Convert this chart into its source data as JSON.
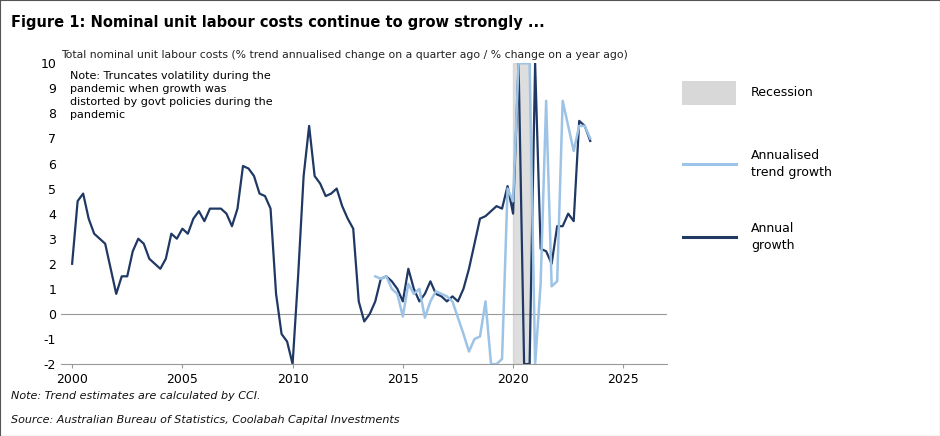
{
  "title": "Figure 1: Nominal unit labour costs continue to grow strongly ...",
  "subtitle": "Total nominal unit labour costs (% trend annualised change on a quarter ago / % change on a year ago)",
  "note": "Note: Trend estimates are calculated by CCI.",
  "source": "Source: Australian Bureau of Statistics, Coolabah Capital Investments",
  "chart_note": "Note: Truncates volatility during the\npandemic when growth was\ndistorted by govt policies during the\npandemic",
  "ylim": [
    -2,
    10
  ],
  "yticks": [
    -2,
    -1,
    0,
    1,
    2,
    3,
    4,
    5,
    6,
    7,
    8,
    9,
    10
  ],
  "xlim": [
    1999.5,
    2027
  ],
  "xticks": [
    2000,
    2005,
    2010,
    2015,
    2020,
    2025
  ],
  "recession_start": 2020.0,
  "recession_end": 2020.75,
  "color_annual": "#1F3864",
  "color_trend": "#9DC3E6",
  "color_recession": "#C8C8C8",
  "title_bg": "#D6E4F0",
  "annual_x": [
    2000.0,
    2000.25,
    2000.5,
    2000.75,
    2001.0,
    2001.25,
    2001.5,
    2001.75,
    2002.0,
    2002.25,
    2002.5,
    2002.75,
    2003.0,
    2003.25,
    2003.5,
    2003.75,
    2004.0,
    2004.25,
    2004.5,
    2004.75,
    2005.0,
    2005.25,
    2005.5,
    2005.75,
    2006.0,
    2006.25,
    2006.5,
    2006.75,
    2007.0,
    2007.25,
    2007.5,
    2007.75,
    2008.0,
    2008.25,
    2008.5,
    2008.75,
    2009.0,
    2009.25,
    2009.5,
    2009.75,
    2010.0,
    2010.25,
    2010.5,
    2010.75,
    2011.0,
    2011.25,
    2011.5,
    2011.75,
    2012.0,
    2012.25,
    2012.5,
    2012.75,
    2013.0,
    2013.25,
    2013.5,
    2013.75,
    2014.0,
    2014.25,
    2014.5,
    2014.75,
    2015.0,
    2015.25,
    2015.5,
    2015.75,
    2016.0,
    2016.25,
    2016.5,
    2016.75,
    2017.0,
    2017.25,
    2017.5,
    2017.75,
    2018.0,
    2018.25,
    2018.5,
    2018.75,
    2019.0,
    2019.25,
    2019.5,
    2019.75,
    2020.0,
    2020.25,
    2020.5,
    2020.75,
    2021.0,
    2021.25,
    2021.5,
    2021.75,
    2022.0,
    2022.25,
    2022.5,
    2022.75,
    2023.0,
    2023.25,
    2023.5
  ],
  "annual_y": [
    2.0,
    4.5,
    4.8,
    3.8,
    3.2,
    3.0,
    2.8,
    1.8,
    0.8,
    1.5,
    1.5,
    2.5,
    3.0,
    2.8,
    2.2,
    2.0,
    1.8,
    2.2,
    3.2,
    3.0,
    3.4,
    3.2,
    3.8,
    4.1,
    3.7,
    4.2,
    4.2,
    4.2,
    4.0,
    3.5,
    4.2,
    5.9,
    5.8,
    5.5,
    4.8,
    4.7,
    4.2,
    0.8,
    -0.8,
    -1.1,
    -2.0,
    1.5,
    5.5,
    7.5,
    5.5,
    5.2,
    4.7,
    4.8,
    5.0,
    4.3,
    3.8,
    3.4,
    0.5,
    -0.3,
    0.0,
    0.5,
    1.4,
    1.5,
    1.3,
    1.0,
    0.5,
    1.8,
    1.0,
    0.5,
    0.8,
    1.3,
    0.8,
    0.7,
    0.5,
    0.7,
    0.5,
    1.0,
    1.8,
    2.8,
    3.8,
    3.9,
    4.1,
    4.3,
    4.2,
    5.1,
    4.0,
    10.0,
    -2.0,
    -2.0,
    10.0,
    2.6,
    2.5,
    2.0,
    3.5,
    3.5,
    4.0,
    3.7,
    7.7,
    7.5,
    6.9
  ],
  "trend_x": [
    2013.75,
    2014.0,
    2014.25,
    2014.5,
    2014.75,
    2015.0,
    2015.25,
    2015.5,
    2015.75,
    2016.0,
    2016.25,
    2016.5,
    2016.75,
    2017.0,
    2017.25,
    2017.5,
    2017.75,
    2018.0,
    2018.25,
    2018.5,
    2018.75,
    2019.0,
    2019.25,
    2019.5,
    2019.75,
    2020.0,
    2020.25,
    2020.5,
    2020.75,
    2021.0,
    2021.25,
    2021.5,
    2021.75,
    2022.0,
    2022.25,
    2022.5,
    2022.75,
    2023.0,
    2023.25,
    2023.5
  ],
  "trend_y": [
    1.5,
    1.4,
    1.5,
    1.0,
    0.8,
    -0.1,
    1.2,
    0.8,
    1.0,
    -0.15,
    0.5,
    0.9,
    0.8,
    0.7,
    0.5,
    -0.15,
    -0.8,
    -1.5,
    -1.0,
    -0.9,
    0.5,
    -2.0,
    -2.0,
    -1.8,
    5.0,
    4.5,
    10.0,
    10.0,
    10.0,
    -2.0,
    1.2,
    8.5,
    1.1,
    1.3,
    8.5,
    7.5,
    6.5,
    7.5,
    7.5,
    7.0
  ]
}
